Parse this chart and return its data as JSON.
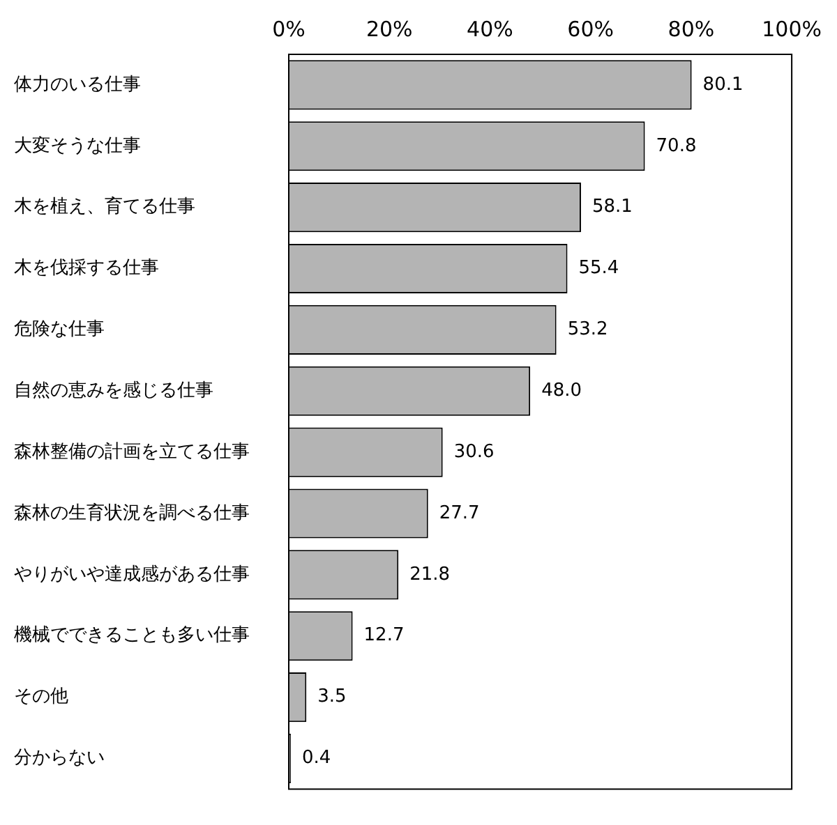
{
  "chart_data": {
    "type": "bar",
    "orientation": "horizontal",
    "categories": [
      "体力のいる仕事",
      "大変そうな仕事",
      "木を植え、育てる仕事",
      "木を伐採する仕事",
      "危険な仕事",
      "自然の恵みを感じる仕事",
      "森林整備の計画を立てる仕事",
      "森林の生育状況を調べる仕事",
      "やりがいや達成感がある仕事",
      "機械でできることも多い仕事",
      "その他",
      "分からない"
    ],
    "values": [
      80.1,
      70.8,
      58.1,
      55.4,
      53.2,
      48.0,
      30.6,
      27.7,
      21.8,
      12.7,
      3.5,
      0.4
    ],
    "value_labels": [
      "80.1",
      "70.8",
      "58.1",
      "55.4",
      "53.2",
      "48.0",
      "30.6",
      "27.7",
      "21.8",
      "12.7",
      "3.5",
      "0.4"
    ],
    "color": "#b4b4b4",
    "xlim": [
      0,
      100
    ],
    "xticks": [
      {
        "value": 0,
        "label": "0%"
      },
      {
        "value": 20,
        "label": "20%"
      },
      {
        "value": 40,
        "label": "40%"
      },
      {
        "value": 60,
        "label": "60%"
      },
      {
        "value": 80,
        "label": "80%"
      },
      {
        "value": 100,
        "label": "100%"
      }
    ],
    "grid": false,
    "legend": false
  }
}
